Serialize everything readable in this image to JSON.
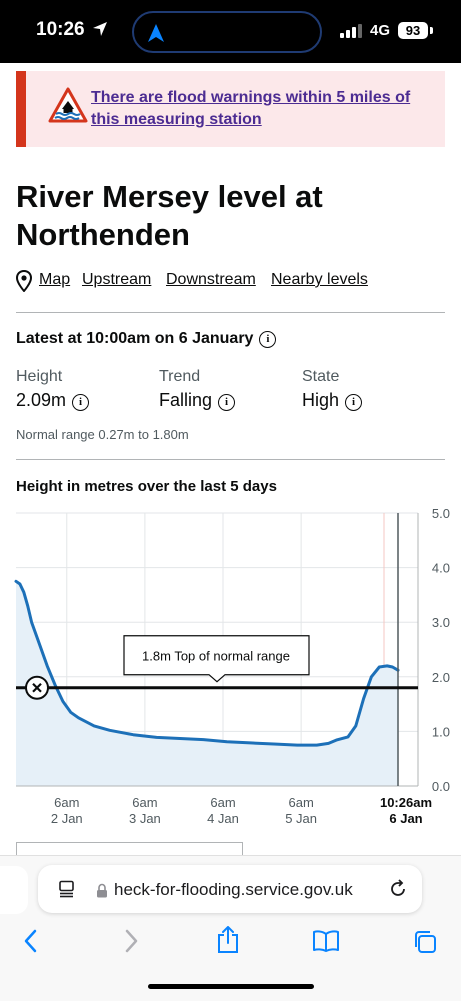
{
  "status_bar": {
    "time": "10:26",
    "network": "4G",
    "battery": "93"
  },
  "warning": {
    "link_text": "There are flood warnings within 5 miles of this measuring station"
  },
  "page": {
    "title": "River Mersey level at Northenden",
    "nav_links": [
      "Map",
      "Upstream",
      "Downstream",
      "Nearby levels"
    ]
  },
  "latest": {
    "heading": "Latest at 10:00am on 6 January",
    "info_glyph": "i",
    "height": {
      "label": "Height",
      "value": "2.09m"
    },
    "trend": {
      "label": "Trend",
      "value": "Falling"
    },
    "state": {
      "label": "State",
      "value": "High"
    },
    "normal_range": "Normal range 0.27m to 1.80m"
  },
  "chart_heading": "Height in metres over the last 5 days",
  "chart_data": {
    "type": "area",
    "x_tick_labels": [
      {
        "top": "6am",
        "bottom": "2 Jan",
        "bold": false
      },
      {
        "top": "6am",
        "bottom": "3 Jan",
        "bold": false
      },
      {
        "top": "6am",
        "bottom": "4 Jan",
        "bold": false
      },
      {
        "top": "6am",
        "bottom": "5 Jan",
        "bold": false
      },
      {
        "top": "10:26am",
        "bottom": "6 Jan",
        "bold": true
      }
    ],
    "y_ticks": [
      "0.0",
      "1.0",
      "2.0",
      "3.0",
      "4.0",
      "5.0"
    ],
    "ylim": [
      0,
      5
    ],
    "x_days_range": [
      0,
      4.89
    ],
    "tick_days": [
      0.65,
      1.65,
      2.65,
      3.65,
      4.89
    ],
    "series": [
      {
        "points": [
          [
            0,
            3.75
          ],
          [
            0.05,
            3.7
          ],
          [
            0.1,
            3.55
          ],
          [
            0.15,
            3.3
          ],
          [
            0.2,
            3.0
          ],
          [
            0.3,
            2.6
          ],
          [
            0.4,
            2.2
          ],
          [
            0.5,
            1.85
          ],
          [
            0.6,
            1.55
          ],
          [
            0.7,
            1.35
          ],
          [
            0.8,
            1.25
          ],
          [
            1.0,
            1.1
          ],
          [
            1.2,
            1.02
          ],
          [
            1.5,
            0.94
          ],
          [
            1.8,
            0.89
          ],
          [
            2.1,
            0.87
          ],
          [
            2.4,
            0.85
          ],
          [
            2.7,
            0.81
          ],
          [
            3.0,
            0.79
          ],
          [
            3.3,
            0.77
          ],
          [
            3.6,
            0.75
          ],
          [
            3.85,
            0.75
          ],
          [
            4.0,
            0.78
          ],
          [
            4.1,
            0.84
          ],
          [
            4.25,
            0.9
          ],
          [
            4.35,
            1.1
          ],
          [
            4.45,
            1.6
          ],
          [
            4.55,
            2.0
          ],
          [
            4.65,
            2.18
          ],
          [
            4.75,
            2.2
          ],
          [
            4.82,
            2.18
          ],
          [
            4.89,
            2.12
          ]
        ],
        "color": "#1d70b8"
      }
    ],
    "threshold": {
      "value": 1.8,
      "label": "1.8m Top of normal range"
    },
    "colors": {
      "line": "#1d70b8",
      "fill": "#e6f0f8",
      "threshold": "#0b0c0c"
    }
  },
  "browser": {
    "url": "heck-for-flooding.service.gov.uk"
  },
  "colors": {
    "warning_bg": "#fce8ea",
    "warning_bar": "#d4351c",
    "link": "#4c2c92",
    "ios_blue": "#0a84ff"
  }
}
